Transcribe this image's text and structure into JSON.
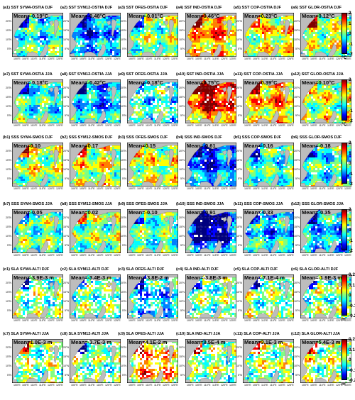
{
  "colors": {
    "land": "#bdbdbd",
    "nodata": "#ffffff",
    "frame": "#000000",
    "colormap": [
      "#00007f",
      "#0000ff",
      "#007fff",
      "#00ffff",
      "#7fff7f",
      "#ffff00",
      "#ff7f00",
      "#ff0000",
      "#7f0000"
    ]
  },
  "axis_labels": {
    "lat": [
      "20°N",
      "15°N",
      "10°N",
      "5°N"
    ],
    "lon": [
      "100°E",
      "105°E",
      "110°E",
      "115°E",
      "120°E",
      "125°E"
    ]
  },
  "colorbars": [
    {
      "row_group": "SST",
      "ticks": [
        "2",
        "1",
        "0",
        "-1",
        "-2"
      ],
      "unit": "°C"
    },
    {
      "row_group": "SSS",
      "ticks": [
        "2",
        "1",
        "0",
        "-1",
        "-2"
      ],
      "unit": ""
    },
    {
      "row_group": "SLA",
      "ticks": [
        "0.2",
        "0.1",
        "0",
        "-0.1",
        "-0.2"
      ],
      "unit": "m"
    }
  ],
  "rows": [
    {
      "var": "SST",
      "panels": [
        {
          "title": "(a1) SST SYM4-OSTIA DJF",
          "mean": "Mean=-0.19°C",
          "bias": -0.19
        },
        {
          "title": "(a2) SST SYM12-OSTIA DJF",
          "mean": "Mean=-0.48°C",
          "bias": -0.48
        },
        {
          "title": "(a3) SST OFES-OSTIA DJF",
          "mean": "Mean=-0.01°C",
          "bias": -0.01
        },
        {
          "title": "(a4) SST IND-OSTIA DJF",
          "mean": "Mean=0.46°C",
          "bias": 0.46
        },
        {
          "title": "(a5) SST COP-OSTIA DJF",
          "mean": "Mean=0.23°C",
          "bias": 0.23
        },
        {
          "title": "(a6) SST GLOR-OSTIA DJF",
          "mean": "Mean=0.12°C",
          "bias": 0.12
        }
      ]
    },
    {
      "var": "SST",
      "panels": [
        {
          "title": "(a7) SST SYM4-OSTIA JJA",
          "mean": "Mean=-0.18°C",
          "bias": -0.18
        },
        {
          "title": "(a8) SST SYM12-OSTIA JJA",
          "mean": "Mean=-0.42°C",
          "bias": -0.42
        },
        {
          "title": "(a9) SST OFES-OSTIA JJA",
          "mean": "Mean=-0.18°C",
          "bias": -0.18
        },
        {
          "title": "(a10) SST IND-OSTIA JJA",
          "mean": "Mean=0.75°C",
          "bias": 0.75
        },
        {
          "title": "(a11) SST COP-OSTIA JJA",
          "mean": "Mean=0.39°C",
          "bias": 0.39
        },
        {
          "title": "(a12) SST GLOR-OSTIA JJA",
          "mean": "Mean=0.10°C",
          "bias": 0.1
        }
      ]
    },
    {
      "var": "SSS",
      "panels": [
        {
          "title": "(b1) SSS SYM4-SMOS DJF",
          "mean": "Mean=0.10",
          "bias": 0.1
        },
        {
          "title": "(b2) SSS SYM12-SMOS DJF",
          "mean": "Mean=0.17",
          "bias": 0.17
        },
        {
          "title": "(b3) SSS OFES-SMOS DJF",
          "mean": "Mean=0.15",
          "bias": 0.15
        },
        {
          "title": "(b4) SSS IND-SMOS DJF",
          "mean": "Mean=-0.61",
          "bias": -0.61
        },
        {
          "title": "(b5) SSS COP-SMOS DJF",
          "mean": "Mean=-0.16",
          "bias": -0.16
        },
        {
          "title": "(b6) SSS GLOR-SMOS DJF",
          "mean": "Mean=-0.18",
          "bias": -0.18
        }
      ]
    },
    {
      "var": "SSS",
      "panels": [
        {
          "title": "(b7) SSS SYM4-SMOS JJA",
          "mean": "Mean=-0.05",
          "bias": -0.05
        },
        {
          "title": "(b8) SSS SYM12-SMOS JJA",
          "mean": "Mean=0.02",
          "bias": 0.02
        },
        {
          "title": "(b9) SSS OFES-SMOS JJA",
          "mean": "Mean=-0.10",
          "bias": -0.1
        },
        {
          "title": "(b10) SSS IND-SMOS JJA",
          "mean": "Mean=-0.91",
          "bias": -0.91
        },
        {
          "title": "(b11) SSS COP-SMOS JJA",
          "mean": "Mean=-0.33",
          "bias": -0.33
        },
        {
          "title": "(b12) SSS GLOR-SMOS JJA",
          "mean": "Mean=-0.35",
          "bias": -0.35
        }
      ]
    },
    {
      "var": "SLA",
      "panels": [
        {
          "title": "(c1) SLA SYM4-ALTI DJF",
          "mean": "Mean=-3.9E-3 m",
          "bias": -0.0039
        },
        {
          "title": "(c2) SLA SYM12-ALTI DJF",
          "mean": "Mean=-3.4E-3 m",
          "bias": -0.0034
        },
        {
          "title": "(c3) SLA OFES-ALTI DJF",
          "mean": "Mean=-3.8E-2 m",
          "bias": -0.038
        },
        {
          "title": "(c4) SLA IND-ALTI DJF",
          "mean": "Mean=-3.8E-3 m",
          "bias": -0.0038
        },
        {
          "title": "(c5) SLA COP-ALTI DJF",
          "mean": "Mean=-7.1E-4 m",
          "bias": -0.00071
        },
        {
          "title": "(c6) SLA GLOR-ALTI DJF",
          "mean": "Mean=-1.9E-3 m",
          "bias": -0.0019
        }
      ]
    },
    {
      "var": "SLA",
      "panels": [
        {
          "title": "(c7) SLA SYM4-ALTI JJA",
          "mean": "Mean=1.0E-3 m",
          "bias": 0.001
        },
        {
          "title": "(c8) SLA SYM12-ALTI JJA",
          "mean": "Mean=-3.7E-3 m",
          "bias": -0.0037
        },
        {
          "title": "(c9) SLA OFES-ALTI JJA",
          "mean": "Mean=4.1E-2 m",
          "bias": 0.041
        },
        {
          "title": "(c10) SLA IND-ALTI JJA",
          "mean": "Mean=8.5E-4 m",
          "bias": 0.00085
        },
        {
          "title": "(c11) SLA COP-ALTI JJA",
          "mean": "Mean=3.1E-3 m",
          "bias": 0.0031
        },
        {
          "title": "(c12) SLA GLOR-ALTI JJA",
          "mean": "Mean=5.4E-3 m",
          "bias": 0.0054
        }
      ]
    }
  ]
}
